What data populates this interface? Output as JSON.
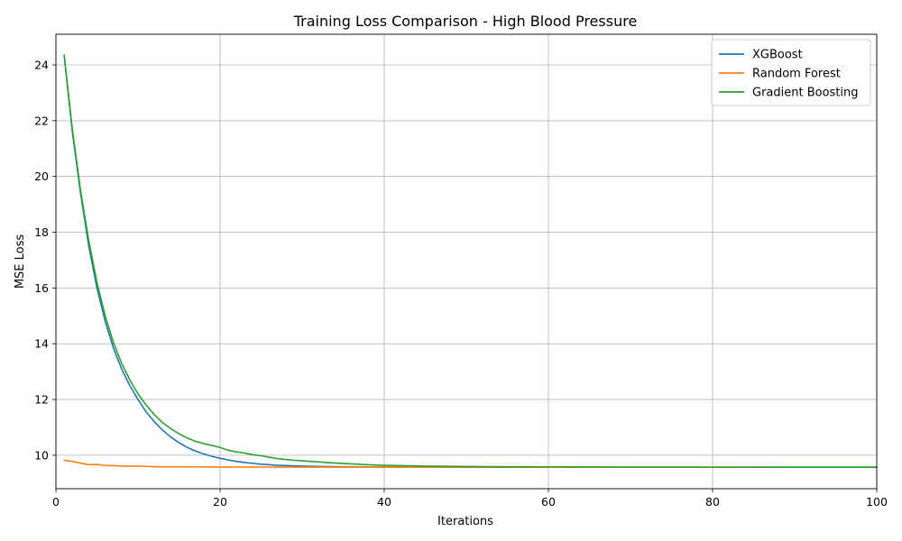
{
  "chart_data": {
    "type": "line",
    "title": "Training Loss Comparison - High Blood Pressure",
    "xlabel": "Iterations",
    "ylabel": "MSE Loss",
    "xlim": [
      0,
      100
    ],
    "ylim": [
      8.8,
      25.1
    ],
    "x_ticks": [
      "0",
      "20",
      "40",
      "60",
      "80",
      "100"
    ],
    "y_ticks": [
      "10",
      "12",
      "14",
      "16",
      "18",
      "20",
      "22",
      "24"
    ],
    "grid": true,
    "legend_position": "top-right",
    "series": [
      {
        "name": "XGBoost",
        "color": "#1f77b4",
        "x": [
          1,
          2,
          3,
          4,
          5,
          6,
          7,
          8,
          9,
          10,
          11,
          12,
          13,
          14,
          15,
          16,
          17,
          18,
          19,
          20,
          21,
          22,
          23,
          24,
          25,
          26,
          27,
          28,
          29,
          30,
          32,
          34,
          36,
          38,
          40,
          45,
          50,
          55,
          60,
          70,
          80,
          90,
          100
        ],
        "y": [
          24.35,
          21.6,
          19.4,
          17.5,
          16.0,
          14.8,
          13.85,
          13.1,
          12.5,
          12.0,
          11.55,
          11.2,
          10.9,
          10.65,
          10.45,
          10.28,
          10.15,
          10.05,
          9.96,
          9.89,
          9.83,
          9.78,
          9.74,
          9.71,
          9.68,
          9.66,
          9.64,
          9.63,
          9.62,
          9.61,
          9.6,
          9.59,
          9.585,
          9.58,
          9.578,
          9.575,
          9.572,
          9.57,
          9.57,
          9.57,
          9.57,
          9.57,
          9.57
        ]
      },
      {
        "name": "Random Forest",
        "color": "#ff7f0e",
        "x": [
          1,
          2,
          3,
          4,
          5,
          6,
          7,
          8,
          9,
          10,
          11,
          12,
          13,
          14,
          15,
          16,
          17,
          18,
          19,
          20,
          25,
          30,
          40,
          50,
          60,
          70,
          80,
          90,
          100
        ],
        "y": [
          9.82,
          9.78,
          9.72,
          9.66,
          9.67,
          9.63,
          9.63,
          9.61,
          9.61,
          9.61,
          9.6,
          9.59,
          9.585,
          9.585,
          9.585,
          9.582,
          9.58,
          9.58,
          9.578,
          9.578,
          9.576,
          9.575,
          9.573,
          9.572,
          9.571,
          9.57,
          9.57,
          9.57,
          9.57
        ]
      },
      {
        "name": "Gradient Boosting",
        "color": "#2ca02c",
        "x": [
          1,
          2,
          3,
          4,
          5,
          6,
          7,
          8,
          9,
          10,
          11,
          12,
          13,
          14,
          15,
          16,
          17,
          18,
          19,
          20,
          21,
          22,
          23,
          24,
          25,
          26,
          27,
          28,
          29,
          30,
          32,
          34,
          36,
          38,
          40,
          45,
          50,
          55,
          60,
          70,
          80,
          90,
          100
        ],
        "y": [
          24.35,
          21.7,
          19.5,
          17.7,
          16.2,
          15.0,
          14.05,
          13.3,
          12.7,
          12.2,
          11.8,
          11.45,
          11.17,
          10.95,
          10.77,
          10.62,
          10.5,
          10.42,
          10.35,
          10.28,
          10.18,
          10.12,
          10.08,
          10.02,
          9.98,
          9.93,
          9.88,
          9.85,
          9.82,
          9.8,
          9.76,
          9.72,
          9.69,
          9.66,
          9.64,
          9.61,
          9.595,
          9.585,
          9.58,
          9.575,
          9.572,
          9.571,
          9.57
        ]
      }
    ]
  }
}
